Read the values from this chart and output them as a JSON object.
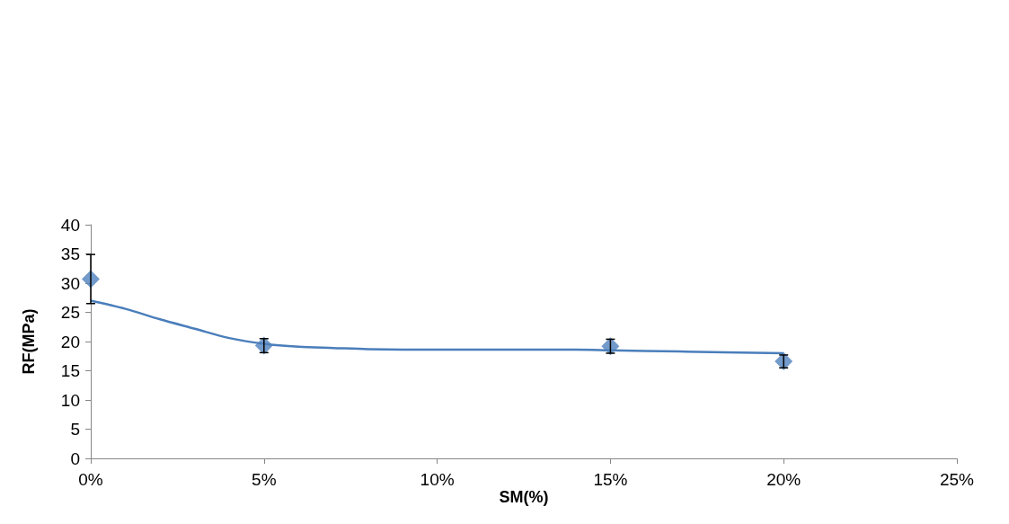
{
  "chart_data": {
    "type": "scatter",
    "xlabel": "SM(%)",
    "ylabel": "RF(MPa)",
    "xlim": [
      0,
      25
    ],
    "xticks": [
      {
        "value": 0,
        "label": "0%"
      },
      {
        "value": 5,
        "label": "5%"
      },
      {
        "value": 10,
        "label": "10%"
      },
      {
        "value": 15,
        "label": "15%"
      },
      {
        "value": 20,
        "label": "20%"
      },
      {
        "value": 25,
        "label": "25%"
      }
    ],
    "ylim": [
      0,
      40
    ],
    "yticks": [
      0,
      5,
      10,
      15,
      20,
      25,
      30,
      35,
      40
    ],
    "grid": false,
    "series": [
      {
        "color": "#4f81bd",
        "marker": "diamond",
        "x": [
          0,
          5,
          15,
          20
        ],
        "values": [
          30.7,
          19.3,
          19.2,
          16.6
        ],
        "errors": [
          4.2,
          1.2,
          1.2,
          1.1
        ]
      },
      {
        "type": "line",
        "color": "#4a7ebb",
        "marker": "none",
        "line_style": "solid",
        "x": [
          0,
          1,
          2,
          3,
          4,
          5,
          6,
          7,
          8,
          10,
          12,
          14,
          15,
          17,
          20
        ],
        "values": [
          27,
          25.6,
          23.8,
          22.2,
          20.6,
          19.6,
          19.1,
          18.9,
          18.7,
          18.6,
          18.6,
          18.6,
          18.5,
          18.3,
          18
        ]
      }
    ]
  }
}
